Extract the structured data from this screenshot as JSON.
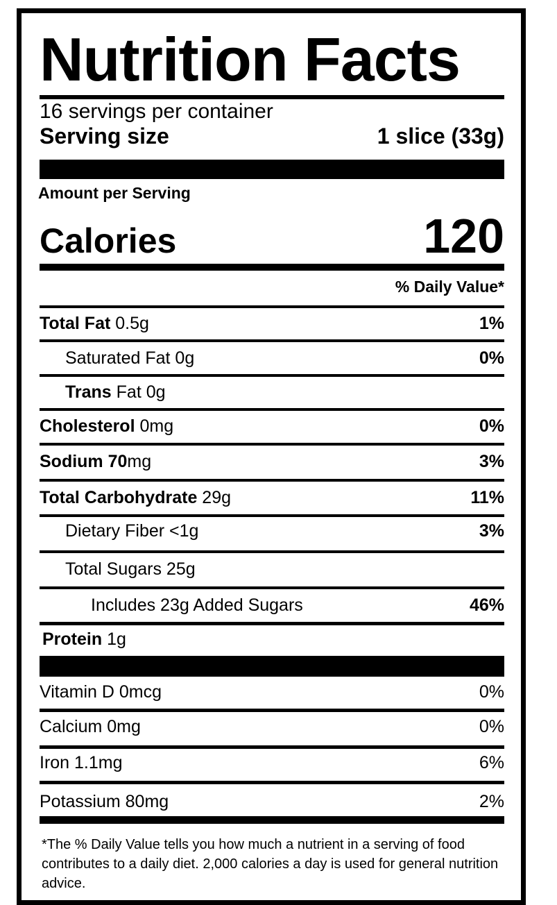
{
  "title": "Nutrition Facts",
  "servings_per_container": "16 servings per container",
  "serving_size_label": "Serving size",
  "serving_size_value": "1 slice (33g)",
  "amount_per_serving": "Amount per Serving",
  "calories_label": "Calories",
  "calories_value": "120",
  "daily_value_header": "% Daily Value*",
  "nutrients": [
    {
      "name": "Total Fat",
      "amount": " 0.5g",
      "dv": "1%"
    },
    {
      "name": "Saturated Fat 0g",
      "amount": "",
      "dv": "0%"
    },
    {
      "name": "Trans",
      "amount": " Fat 0g",
      "dv": ""
    },
    {
      "name": "Cholesterol",
      "amount": " 0mg",
      "dv": "0%"
    },
    {
      "name": "Sodium 70",
      "amount": "mg",
      "dv": "3%"
    },
    {
      "name": "Total Carbohydrate",
      "amount": " 29g",
      "dv": "11%"
    },
    {
      "name": "Dietary Fiber <1g",
      "amount": "",
      "dv": "3%"
    },
    {
      "name": "Total Sugars 25g",
      "amount": "",
      "dv": ""
    },
    {
      "name": "Includes 23g Added Sugars",
      "amount": "",
      "dv": "46%"
    },
    {
      "name": "Protein",
      "amount": " 1g",
      "dv": ""
    }
  ],
  "vitamins": [
    {
      "name": "Vitamin D 0mcg",
      "dv": "0%"
    },
    {
      "name": "Calcium 0mg",
      "dv": "0%"
    },
    {
      "name": "Iron 1.1mg",
      "dv": "6%"
    },
    {
      "name": "Potassium 80mg",
      "dv": "2%"
    }
  ],
  "footnote": "*The % Daily Value tells you how much a nutrient in a serving of food contributes to a daily diet. 2,000 calories a day is used for general nutrition advice."
}
